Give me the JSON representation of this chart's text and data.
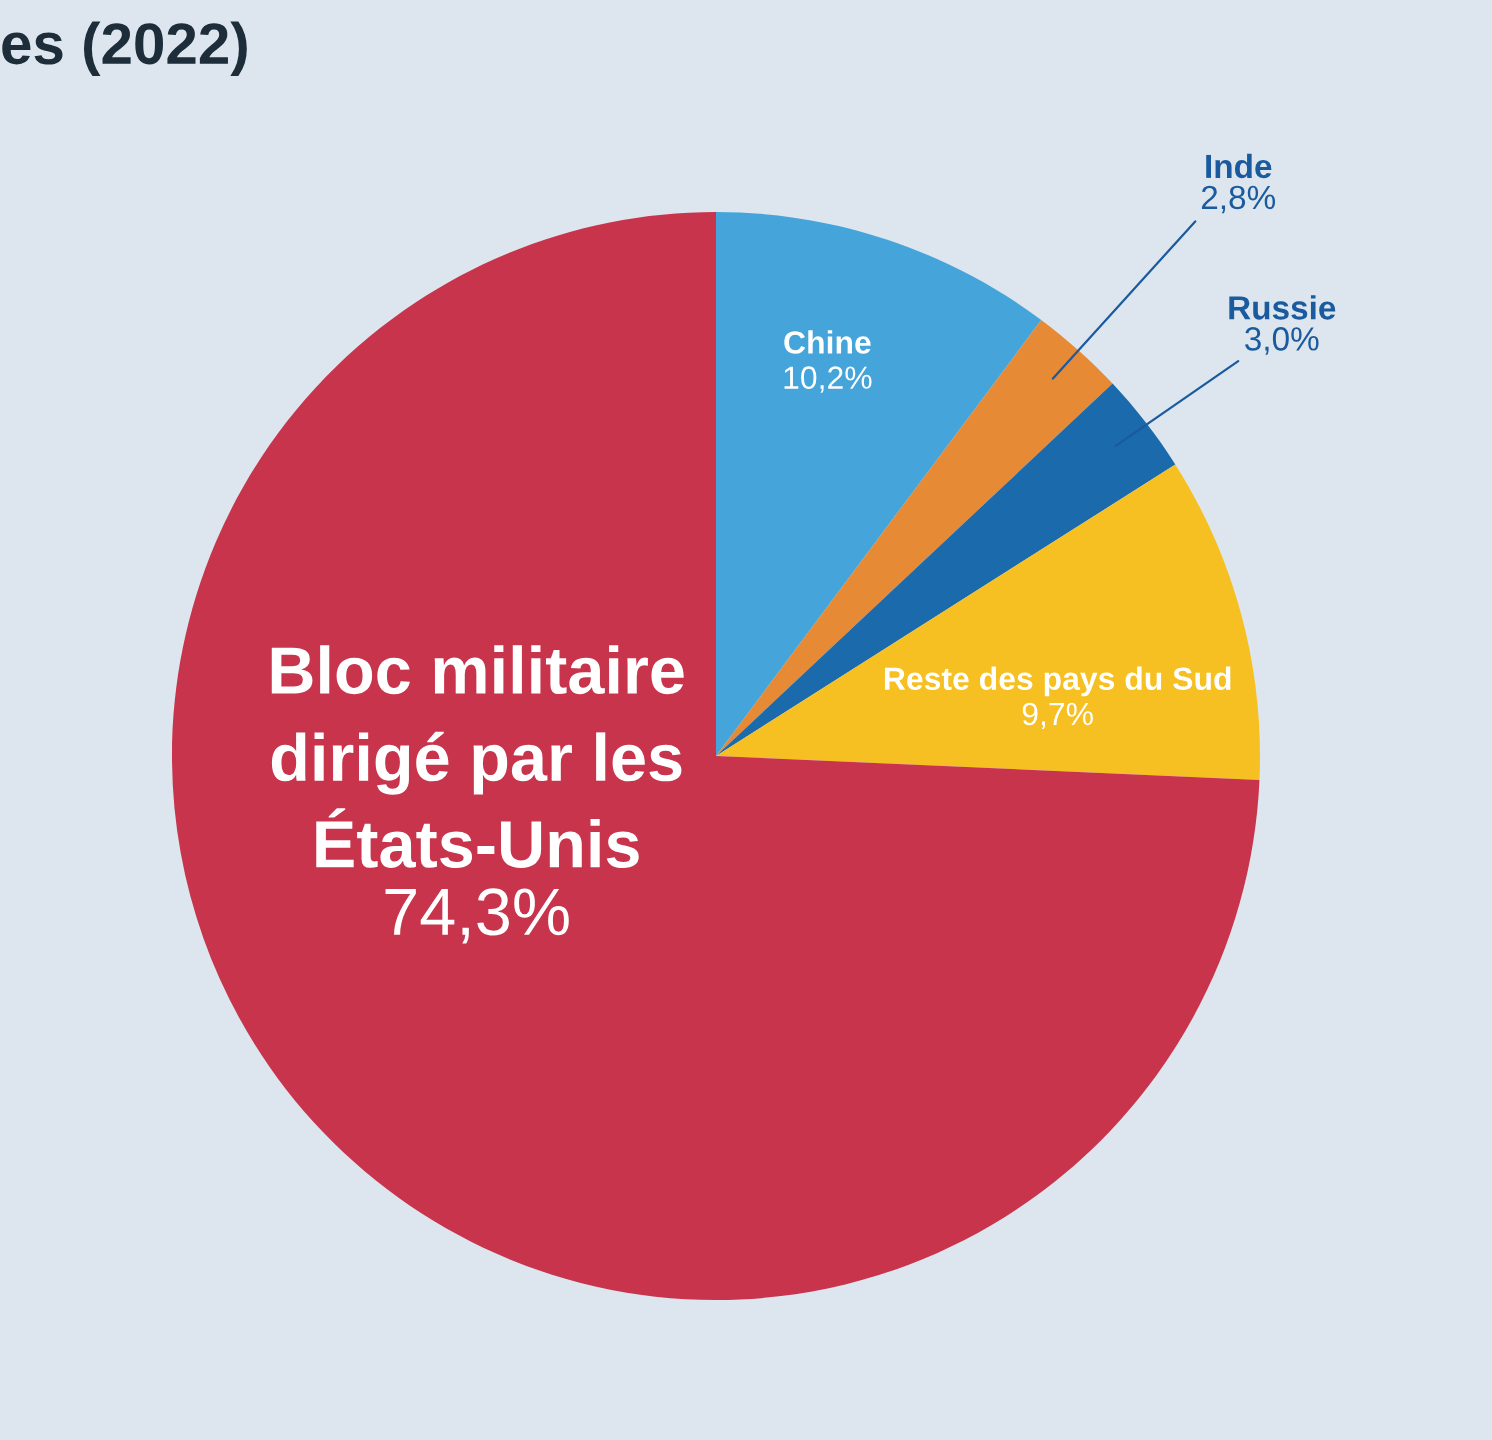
{
  "chart_data": {
    "type": "pie",
    "title": "es (2022)",
    "categories": [
      "Chine",
      "Inde",
      "Russie",
      "Reste des pays du Sud",
      "Bloc militaire\ndirigé par les\nÉtats-Unis"
    ],
    "values": [
      10.2,
      2.8,
      3.0,
      9.7,
      74.3
    ],
    "value_labels": [
      "10,2%",
      "2,8%",
      "3,0%",
      "9,7%",
      "74,3%"
    ],
    "colors": [
      "#45a5db",
      "#e68a36",
      "#1a6aac",
      "#f6c022",
      "#c8344c"
    ]
  }
}
